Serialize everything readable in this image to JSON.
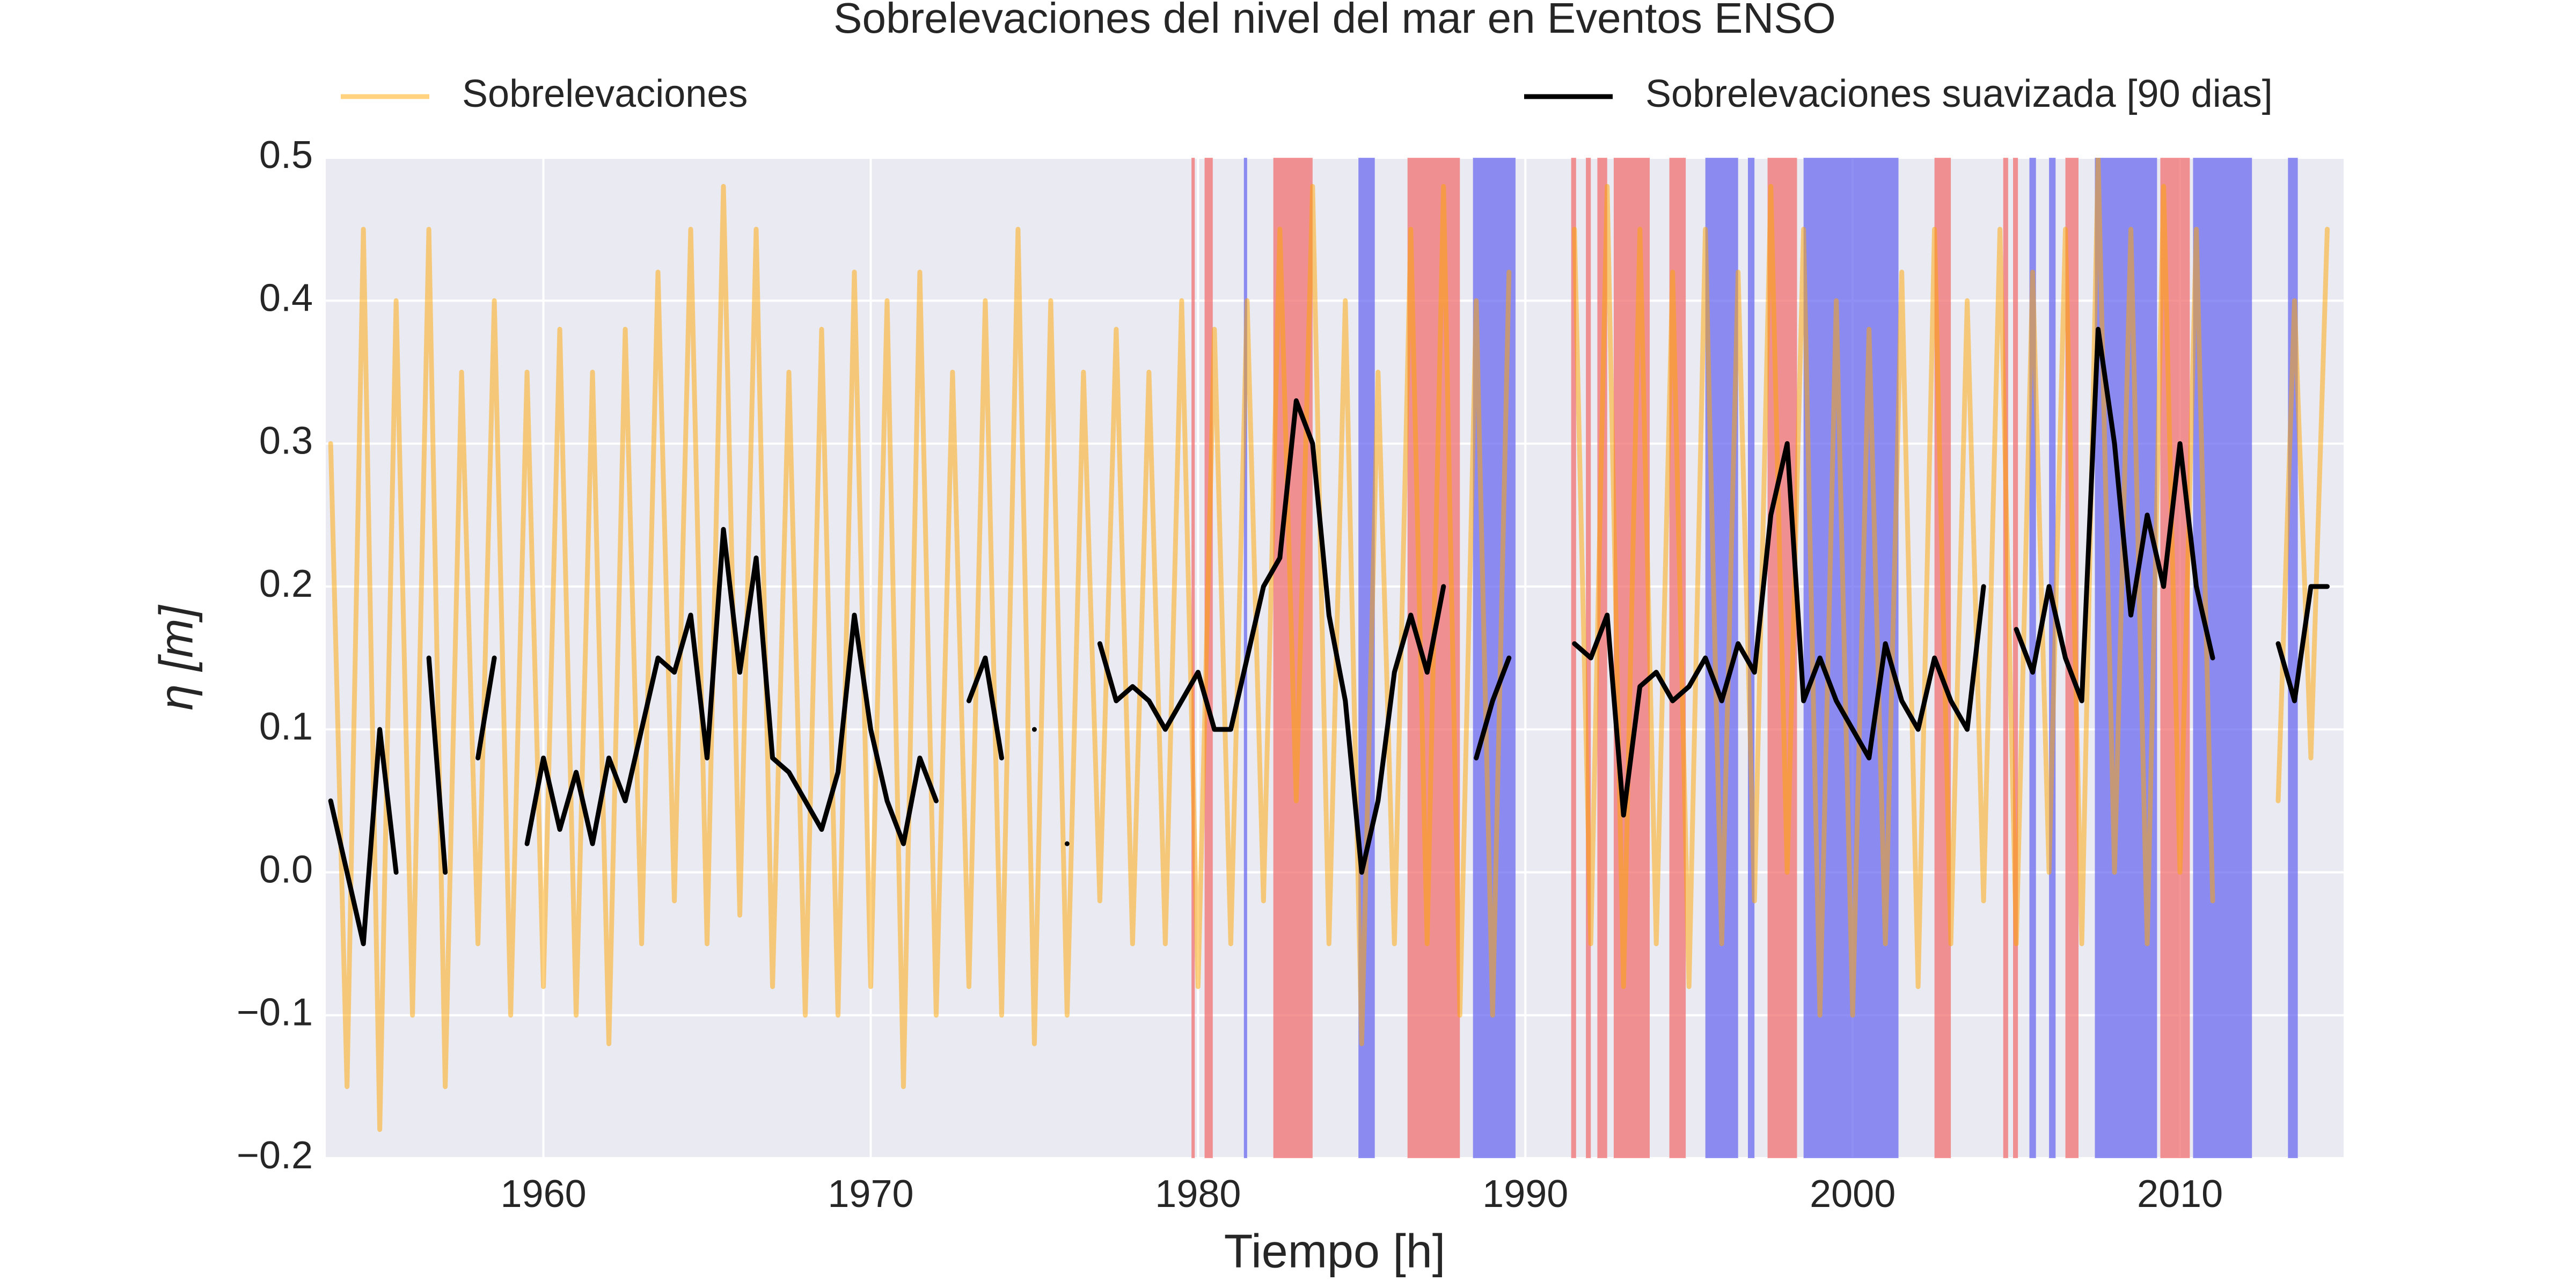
{
  "chart_data": {
    "type": "line",
    "title": "Sobrelevaciones del nivel del mar en Eventos ENSO",
    "xlabel": "Tiempo [h]",
    "ylabel": "η [m]",
    "xlim": [
      1953.35,
      2015.0
    ],
    "ylim": [
      -0.2,
      0.5
    ],
    "xticks": [
      1960,
      1970,
      1980,
      1990,
      2000,
      2010
    ],
    "yticks": [
      {
        "value": -0.2,
        "label": "−0.2"
      },
      {
        "value": -0.1,
        "label": "−0.1"
      },
      {
        "value": 0,
        "label": "0.0"
      },
      0.1,
      0.2,
      0.3,
      0.4,
      0.5
    ],
    "grid": true,
    "x": [
      1953.5,
      1954,
      1954.5,
      1955,
      1955.5,
      1956,
      1956.5,
      1957,
      1957.5,
      1958,
      1958.5,
      1959,
      1959.5,
      1960,
      1960.5,
      1961,
      1961.5,
      1962,
      1962.5,
      1963,
      1963.5,
      1964,
      1964.5,
      1965,
      1965.5,
      1966,
      1966.5,
      1967,
      1967.5,
      1968,
      1968.5,
      1969,
      1969.5,
      1970,
      1970.5,
      1971,
      1971.5,
      1972,
      1972.5,
      1973,
      1973.5,
      1974,
      1974.5,
      1975,
      1975.5,
      1976,
      1976.5,
      1977,
      1977.5,
      1978,
      1978.5,
      1979,
      1979.5,
      1980,
      1980.5,
      1981,
      1981.5,
      1982,
      1982.5,
      1983,
      1983.5,
      1984,
      1984.5,
      1985,
      1985.5,
      1986,
      1986.5,
      1987,
      1987.5,
      1988,
      1988.5,
      1989,
      1989.5,
      1990,
      1990.5,
      1991,
      1991.5,
      1992,
      1992.5,
      1993,
      1993.5,
      1994,
      1994.5,
      1995,
      1995.5,
      1996,
      1996.5,
      1997,
      1997.5,
      1998,
      1998.5,
      1999,
      1999.5,
      2000,
      2000.5,
      2001,
      2001.5,
      2002,
      2002.5,
      2003,
      2003.5,
      2004,
      2004.5,
      2005,
      2005.5,
      2006,
      2006.5,
      2007,
      2007.5,
      2008,
      2008.5,
      2009,
      2009.5,
      2010,
      2010.5,
      2011,
      2011.5,
      2012,
      2012.5,
      2013,
      2013.5,
      2014,
      2014.5
    ],
    "series": [
      {
        "name": "Sobrelevaciones",
        "color": "#ffa500",
        "alpha": 0.5,
        "values": [
          0.3,
          -0.15,
          0.45,
          -0.18,
          0.4,
          -0.1,
          0.45,
          -0.15,
          0.35,
          -0.05,
          0.4,
          -0.1,
          0.35,
          -0.08,
          0.38,
          -0.1,
          0.35,
          -0.12,
          0.38,
          -0.05,
          0.42,
          -0.02,
          0.45,
          -0.05,
          0.48,
          -0.03,
          0.45,
          -0.08,
          0.35,
          -0.1,
          0.38,
          -0.1,
          0.42,
          -0.08,
          0.4,
          -0.15,
          0.42,
          -0.1,
          0.35,
          -0.08,
          0.4,
          -0.1,
          0.45,
          -0.12,
          0.4,
          -0.1,
          0.35,
          -0.02,
          0.38,
          -0.05,
          0.35,
          -0.05,
          0.4,
          -0.08,
          0.38,
          -0.05,
          0.4,
          -0.02,
          0.45,
          0.05,
          0.48,
          -0.05,
          0.4,
          -0.12,
          0.35,
          -0.05,
          0.45,
          -0.05,
          0.48,
          -0.1,
          0.4,
          -0.1,
          0.42,
          null,
          null,
          null,
          0.45,
          -0.05,
          0.48,
          -0.08,
          0.45,
          -0.05,
          0.42,
          -0.08,
          0.45,
          -0.05,
          0.42,
          -0.02,
          0.48,
          0.0,
          0.45,
          -0.1,
          0.4,
          -0.1,
          0.38,
          -0.05,
          0.42,
          -0.08,
          0.45,
          -0.05,
          0.4,
          -0.02,
          0.45,
          -0.05,
          0.42,
          0.0,
          0.45,
          -0.05,
          0.5,
          0.0,
          0.45,
          -0.05,
          0.48,
          0.0,
          0.45,
          -0.02,
          null,
          null,
          null,
          0.05,
          0.4,
          0.08,
          0.45
        ]
      },
      {
        "name": "Sobrelevaciones suavizada [90 dias]",
        "color": "#000000",
        "alpha": 1,
        "values": [
          0.05,
          0.0,
          -0.05,
          0.1,
          0.0,
          null,
          0.15,
          0.0,
          null,
          0.08,
          0.15,
          null,
          0.02,
          0.08,
          0.03,
          0.07,
          0.02,
          0.08,
          0.05,
          0.1,
          0.15,
          0.14,
          0.18,
          0.08,
          0.24,
          0.14,
          0.22,
          0.08,
          0.07,
          0.05,
          0.03,
          0.07,
          0.18,
          0.1,
          0.05,
          0.02,
          0.08,
          0.05,
          null,
          0.12,
          0.15,
          0.08,
          null,
          0.1,
          null,
          0.02,
          null,
          0.16,
          0.12,
          0.13,
          0.12,
          0.1,
          0.12,
          0.14,
          0.1,
          0.1,
          0.15,
          0.2,
          0.22,
          0.33,
          0.3,
          0.18,
          0.12,
          0.0,
          0.05,
          0.14,
          0.18,
          0.14,
          0.2,
          null,
          0.08,
          0.12,
          0.15,
          null,
          null,
          null,
          0.16,
          0.15,
          0.18,
          0.04,
          0.13,
          0.14,
          0.12,
          0.13,
          0.15,
          0.12,
          0.16,
          0.14,
          0.25,
          0.3,
          0.12,
          0.15,
          0.12,
          0.1,
          0.08,
          0.16,
          0.12,
          0.1,
          0.15,
          0.12,
          0.1,
          0.2,
          null,
          0.17,
          0.14,
          0.2,
          0.15,
          0.12,
          0.38,
          0.3,
          0.18,
          0.25,
          0.2,
          0.3,
          0.2,
          0.15,
          null,
          null,
          null,
          0.16,
          0.12,
          0.2,
          0.2
        ]
      }
    ],
    "spans": [
      {
        "color": "#f07070",
        "ranges": [
          [
            1979.8,
            1979.9
          ],
          [
            1980.2,
            1980.45
          ],
          [
            1982.3,
            1983.5
          ],
          [
            1986.4,
            1988.0
          ],
          [
            1991.4,
            1991.55
          ],
          [
            1991.85,
            1992.0
          ],
          [
            1992.2,
            1992.5
          ],
          [
            1992.7,
            1993.8
          ],
          [
            1994.4,
            1994.9
          ],
          [
            1997.4,
            1998.3
          ],
          [
            2002.5,
            2003.0
          ],
          [
            2004.6,
            2004.75
          ],
          [
            2004.9,
            2005.05
          ],
          [
            2006.5,
            2006.9
          ],
          [
            2009.4,
            2010.3
          ]
        ]
      },
      {
        "color": "#6a6af0",
        "ranges": [
          [
            1981.4,
            1981.5
          ],
          [
            1984.9,
            1985.4
          ],
          [
            1988.4,
            1989.7
          ],
          [
            1995.5,
            1996.5
          ],
          [
            1996.8,
            1997.0
          ],
          [
            1998.5,
            2001.4
          ],
          [
            2005.4,
            2005.6
          ],
          [
            2006.0,
            2006.2
          ],
          [
            2007.4,
            2009.3
          ],
          [
            2010.4,
            2012.2
          ],
          [
            2013.3,
            2013.6
          ]
        ]
      }
    ]
  }
}
